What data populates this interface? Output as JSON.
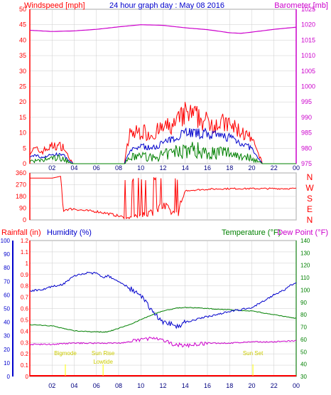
{
  "chart_data": [
    {
      "type": "line",
      "title": "24 hour graph day : May 08 2016",
      "ylabel_left": "Windspeed [mph]",
      "ylabel_right": "Barometer [mb]",
      "ylim_left": [
        0,
        50
      ],
      "ylim_right": [
        975,
        1025
      ],
      "xlim_hours": [
        0,
        24
      ],
      "x_tick_labels": [
        "02",
        "04",
        "06",
        "08",
        "10",
        "12",
        "14",
        "16",
        "18",
        "20",
        "22",
        "00"
      ],
      "y_left_ticks": [
        "0",
        "5",
        "10",
        "15",
        "20",
        "25",
        "30",
        "35",
        "40",
        "45",
        "50"
      ],
      "y_right_ticks": [
        "975",
        "980",
        "985",
        "990",
        "995",
        "1000",
        "1005",
        "1010",
        "1015",
        "1020",
        "1025"
      ],
      "colors": {
        "gust": "#ff0000",
        "avg": "#0000cc",
        "wind": "#008000",
        "barometer": "#cc00cc",
        "grid": "#cccccc",
        "axis": "#ff0000"
      },
      "barometer": {
        "name": "Barometer",
        "x": [
          0,
          2,
          4,
          6,
          8,
          10,
          12,
          14,
          16,
          18,
          19,
          20,
          22,
          24
        ],
        "values": [
          1018.2,
          1017.8,
          1018.0,
          1018.5,
          1019.3,
          1020.0,
          1019.8,
          1019.0,
          1018.4,
          1017.4,
          1017.2,
          1017.6,
          1018.5,
          1019.2
        ]
      },
      "wind_envelope": {
        "x": [
          0,
          0.5,
          1,
          2,
          3,
          3.5,
          4,
          8.5,
          9,
          10,
          11,
          12,
          13,
          13.5,
          14,
          15,
          16,
          17,
          18,
          19,
          20,
          20.5,
          21,
          24
        ],
        "gust": [
          4,
          5,
          4,
          6,
          6,
          2,
          0,
          0,
          10,
          11,
          10,
          12,
          13,
          15,
          17,
          16,
          14,
          14,
          13,
          11,
          8,
          4,
          0,
          0
        ],
        "avg": [
          2,
          3,
          2,
          3,
          3,
          1,
          0,
          0,
          4,
          6,
          5,
          7,
          8,
          10,
          11,
          10,
          10,
          9,
          9,
          7,
          5,
          2,
          0,
          0
        ],
        "wind": [
          1,
          1,
          1,
          2,
          2,
          0.5,
          0,
          0,
          2,
          3,
          2,
          3,
          4,
          5,
          5,
          5,
          4,
          4,
          4,
          3,
          2,
          1,
          0,
          0
        ]
      }
    },
    {
      "type": "line",
      "title": "",
      "ylabel_right": "N W S E N",
      "ylim": [
        0,
        360
      ],
      "y_ticks": [
        "0",
        "90",
        "180",
        "270",
        "360"
      ],
      "right_labels": [
        "N",
        "W",
        "S",
        "E",
        "N"
      ],
      "colors": {
        "direction": "#ff0000"
      },
      "direction": {
        "x": [
          0,
          2,
          2.8,
          3,
          3.2,
          4,
          5,
          6,
          7,
          8,
          8.5,
          9,
          10,
          11,
          12,
          13,
          13.4,
          14,
          16,
          18,
          20,
          22,
          24
        ],
        "values": [
          320,
          320,
          335,
          70,
          80,
          85,
          70,
          65,
          50,
          30,
          20,
          15,
          40,
          60,
          100,
          50,
          60,
          225,
          235,
          240,
          240,
          240,
          240
        ]
      }
    },
    {
      "type": "line",
      "title": "",
      "ylabel_left_1": "Rainfall (in)",
      "ylabel_left_2": "Humidity (%)",
      "ylabel_right_1": "Temperature (°F)",
      "ylabel_right_2": "Dew Point (°F)",
      "rain_ticks": [
        "0",
        "0.1",
        "0.2",
        "0.3",
        "0.4",
        "0.5",
        "0.6",
        "0.7",
        "0.8",
        "0.9",
        "1",
        "1.1",
        "1.2"
      ],
      "humidity_ticks": [
        "0",
        "10",
        "20",
        "30",
        "40",
        "50",
        "60",
        "70",
        "80",
        "90",
        "100"
      ],
      "temp_ticks": [
        "30",
        "40",
        "50",
        "60",
        "70",
        "80",
        "90",
        "100",
        "110",
        "120",
        "130",
        "140"
      ],
      "ylim_humidity": [
        0,
        100
      ],
      "ylim_temp": [
        30,
        140
      ],
      "ylim_rain": [
        0,
        1.2
      ],
      "colors": {
        "humidity": "#0000cc",
        "temperature": "#008000",
        "dewpoint": "#cc00cc",
        "rainfall": "#ff0000",
        "sun": "#ffff00"
      },
      "humidity": {
        "x": [
          0,
          1,
          2,
          3,
          3.5,
          4,
          5,
          6,
          6.5,
          7,
          8,
          9,
          10,
          11,
          11.5,
          12,
          12.5,
          13,
          13.5,
          14,
          15,
          16,
          17,
          18,
          19,
          20,
          21,
          22,
          23,
          23.5,
          24
        ],
        "values": [
          63,
          64,
          66,
          68,
          71,
          74,
          76,
          76,
          73,
          74,
          70,
          65,
          59,
          49,
          44,
          40,
          39,
          38,
          37,
          40,
          42,
          44,
          46,
          48,
          49,
          51,
          55,
          60,
          64,
          67,
          69
        ]
      },
      "temperature": {
        "x": [
          0,
          2,
          4,
          6,
          7,
          8,
          9,
          10,
          11,
          12,
          13,
          14,
          16,
          18,
          20,
          22,
          24
        ],
        "values": [
          72,
          71,
          67,
          66,
          66,
          69,
          72,
          76,
          80,
          83,
          85,
          86,
          85,
          84,
          83,
          80,
          77
        ]
      },
      "dewpoint": {
        "x": [
          0,
          2,
          4,
          6,
          8,
          9,
          10,
          11,
          11.5,
          12,
          13,
          14,
          15,
          16,
          18,
          20,
          22,
          24
        ],
        "values": [
          56,
          56,
          57,
          57,
          57,
          58,
          60,
          61,
          60,
          59,
          56,
          55,
          56,
          57,
          57,
          58,
          58,
          59
        ]
      },
      "rainfall": {
        "x": [
          0,
          24
        ],
        "values": [
          0,
          0
        ]
      },
      "sun_events": [
        {
          "label_1": "Bigmode",
          "label_2": "",
          "hour": 3.2
        },
        {
          "label_1": "Sun Rise",
          "label_2": "Lowtide",
          "hour": 6.6
        },
        {
          "label_1": "Sun Set",
          "label_2": "",
          "hour": 20.1
        }
      ]
    }
  ]
}
